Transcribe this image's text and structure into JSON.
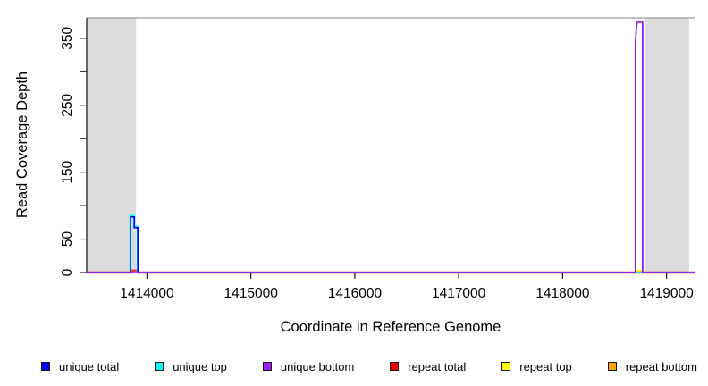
{
  "chart_data": {
    "type": "line",
    "title": "",
    "xlabel": "Coordinate in Reference Genome",
    "ylabel": "Read Coverage Depth",
    "xlim": [
      1413420,
      1419270
    ],
    "ylim": [
      0,
      380.5
    ],
    "grid": false,
    "frame_color": "#999999",
    "shaded_region_color": "#dcdcdc",
    "shaded_regions": [
      {
        "x0": 1413420,
        "x1": 1413895
      },
      {
        "x0": 1418790,
        "x1": 1419217
      }
    ],
    "x_ticks": [
      {
        "v": 1414000,
        "label": "1414000"
      },
      {
        "v": 1415000,
        "label": "1415000"
      },
      {
        "v": 1416000,
        "label": "1416000"
      },
      {
        "v": 1417000,
        "label": "1417000"
      },
      {
        "v": 1418000,
        "label": "1418000"
      },
      {
        "v": 1419000,
        "label": "1419000"
      }
    ],
    "y_ticks": [
      {
        "v": 0,
        "label": "0"
      },
      {
        "v": 50,
        "label": "50"
      },
      {
        "v": 100,
        "label": ""
      },
      {
        "v": 150,
        "label": "150"
      },
      {
        "v": 200,
        "label": ""
      },
      {
        "v": 250,
        "label": "250"
      },
      {
        "v": 300,
        "label": ""
      },
      {
        "v": 350,
        "label": "350"
      }
    ],
    "series": [
      {
        "name": "repeat bottom",
        "color": "#FFA500",
        "points": [
          [
            1413420,
            0
          ],
          [
            1419270,
            0
          ]
        ]
      },
      {
        "name": "repeat top",
        "color": "#FFFF00",
        "points": [
          [
            1413420,
            0
          ],
          [
            1418700,
            0
          ],
          [
            1418700,
            3
          ],
          [
            1418770,
            3
          ],
          [
            1418770,
            0
          ],
          [
            1419270,
            0
          ]
        ]
      },
      {
        "name": "repeat total",
        "color": "#EE0000",
        "points": [
          [
            1413420,
            0
          ],
          [
            1413843,
            0
          ],
          [
            1413843,
            3
          ],
          [
            1413912,
            3
          ],
          [
            1413912,
            0
          ],
          [
            1419270,
            0
          ]
        ]
      },
      {
        "name": "unique top",
        "color": "#00FFFF",
        "points": [
          [
            1413420,
            0
          ],
          [
            1413838,
            0
          ],
          [
            1413838,
            85
          ],
          [
            1413874,
            85
          ],
          [
            1413874,
            69
          ],
          [
            1413908,
            69
          ],
          [
            1413908,
            0
          ],
          [
            1419270,
            0
          ]
        ]
      },
      {
        "name": "unique total",
        "color": "#0000FF",
        "points": [
          [
            1413420,
            0
          ],
          [
            1413843,
            0
          ],
          [
            1413843,
            83
          ],
          [
            1413878,
            83
          ],
          [
            1413878,
            67
          ],
          [
            1413912,
            67
          ],
          [
            1413912,
            0
          ],
          [
            1418700,
            0
          ],
          [
            1418700,
            340
          ],
          [
            1418704,
            352
          ],
          [
            1418710,
            364
          ],
          [
            1418716,
            374
          ],
          [
            1418770,
            374
          ],
          [
            1418770,
            0
          ],
          [
            1419270,
            0
          ]
        ]
      },
      {
        "name": "unique bottom",
        "color": "#A020F0",
        "points": [
          [
            1413420,
            0
          ],
          [
            1418700,
            0
          ],
          [
            1418700,
            340
          ],
          [
            1418704,
            352
          ],
          [
            1418710,
            364
          ],
          [
            1418716,
            374
          ],
          [
            1418770,
            374
          ],
          [
            1418770,
            0
          ],
          [
            1419270,
            0
          ]
        ]
      }
    ],
    "legend_position": "bottom",
    "legend": [
      {
        "label": "unique total",
        "color": "#0000FF"
      },
      {
        "label": "unique top",
        "color": "#00FFFF"
      },
      {
        "label": "unique bottom",
        "color": "#A020F0"
      },
      {
        "label": "repeat total",
        "color": "#EE0000"
      },
      {
        "label": "repeat top",
        "color": "#FFFF00"
      },
      {
        "label": "repeat bottom",
        "color": "#FFA500"
      }
    ]
  }
}
